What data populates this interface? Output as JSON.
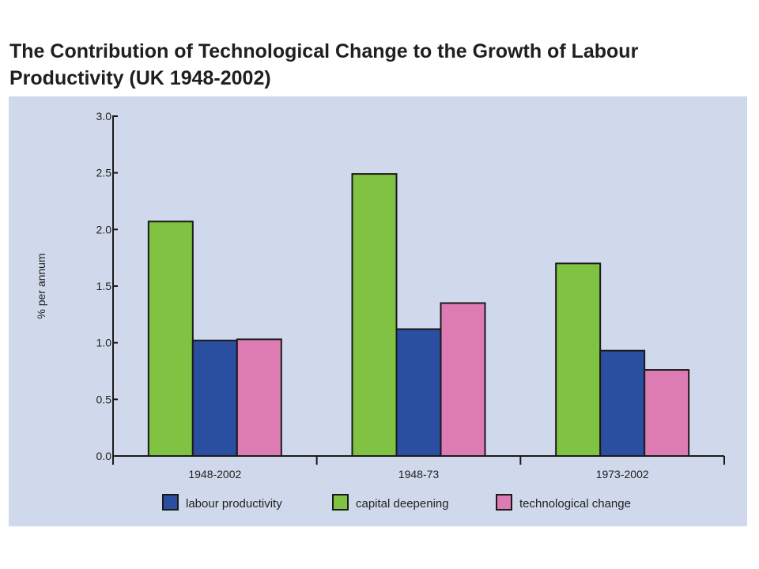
{
  "chart_data": {
    "type": "bar",
    "title": "The Contribution of Technological Change to the Growth of Labour Productivity (UK 1948-2002)",
    "ylabel": "% per annum",
    "xlabel": "",
    "ylim": [
      0,
      3.0
    ],
    "yticks": [
      "0.0",
      "0.5",
      "1.0",
      "1.5",
      "2.0",
      "2.5",
      "3.0"
    ],
    "categories": [
      "1948-2002",
      "1948-73",
      "1973-2002"
    ],
    "series": [
      {
        "name": "capital deepening",
        "color": "#80c241",
        "values": [
          2.07,
          2.49,
          1.7
        ]
      },
      {
        "name": "labour productivity",
        "color": "#2a4fa0",
        "values": [
          1.02,
          1.12,
          0.93
        ]
      },
      {
        "name": "technological change",
        "color": "#dc7cb3",
        "values": [
          1.03,
          1.35,
          0.76
        ]
      }
    ],
    "legend": [
      {
        "name": "labour productivity",
        "color": "#2a4fa0"
      },
      {
        "name": "capital deepening",
        "color": "#80c241"
      },
      {
        "name": "technological change",
        "color": "#dc7cb3"
      }
    ],
    "legend_position": "bottom",
    "grid": false
  }
}
